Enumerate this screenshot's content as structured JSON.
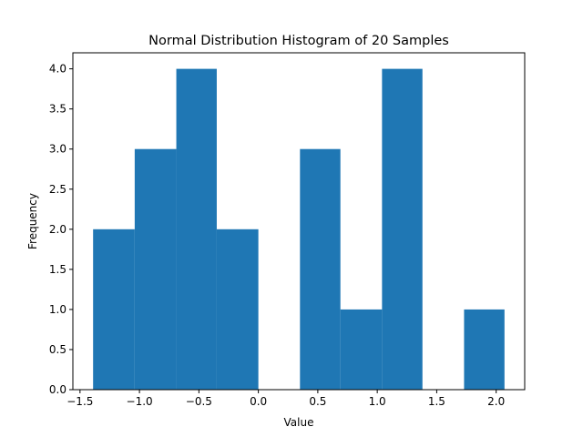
{
  "chart_data": {
    "type": "bar",
    "title": "Normal Distribution Histogram of 20 Samples",
    "xlabel": "Value",
    "ylabel": "Frequency",
    "bins": [
      {
        "start": -1.39,
        "end": -1.04,
        "count": 2
      },
      {
        "start": -1.04,
        "end": -0.69,
        "count": 3
      },
      {
        "start": -0.69,
        "end": -0.35,
        "count": 4
      },
      {
        "start": -0.35,
        "end": 0.0,
        "count": 2
      },
      {
        "start": 0.0,
        "end": 0.35,
        "count": 0
      },
      {
        "start": 0.35,
        "end": 0.69,
        "count": 3
      },
      {
        "start": 0.69,
        "end": 1.04,
        "count": 1
      },
      {
        "start": 1.04,
        "end": 1.38,
        "count": 4
      },
      {
        "start": 1.38,
        "end": 1.73,
        "count": 0
      },
      {
        "start": 1.73,
        "end": 2.07,
        "count": 1
      }
    ],
    "xlim": [
      -1.56,
      2.24
    ],
    "ylim": [
      0,
      4.2
    ],
    "xticks": [
      {
        "value": -1.5,
        "label": "−1.5"
      },
      {
        "value": -1.0,
        "label": "−1.0"
      },
      {
        "value": -0.5,
        "label": "−0.5"
      },
      {
        "value": 0.0,
        "label": "0.0"
      },
      {
        "value": 0.5,
        "label": "0.5"
      },
      {
        "value": 1.0,
        "label": "1.0"
      },
      {
        "value": 1.5,
        "label": "1.5"
      },
      {
        "value": 2.0,
        "label": "2.0"
      }
    ],
    "yticks": [
      {
        "value": 0.0,
        "label": "0.0"
      },
      {
        "value": 0.5,
        "label": "0.5"
      },
      {
        "value": 1.0,
        "label": "1.0"
      },
      {
        "value": 1.5,
        "label": "1.5"
      },
      {
        "value": 2.0,
        "label": "2.0"
      },
      {
        "value": 2.5,
        "label": "2.5"
      },
      {
        "value": 3.0,
        "label": "3.0"
      },
      {
        "value": 3.5,
        "label": "3.5"
      },
      {
        "value": 4.0,
        "label": "4.0"
      }
    ],
    "bar_color": "#1f77b4",
    "grid": false,
    "legend": "none"
  }
}
